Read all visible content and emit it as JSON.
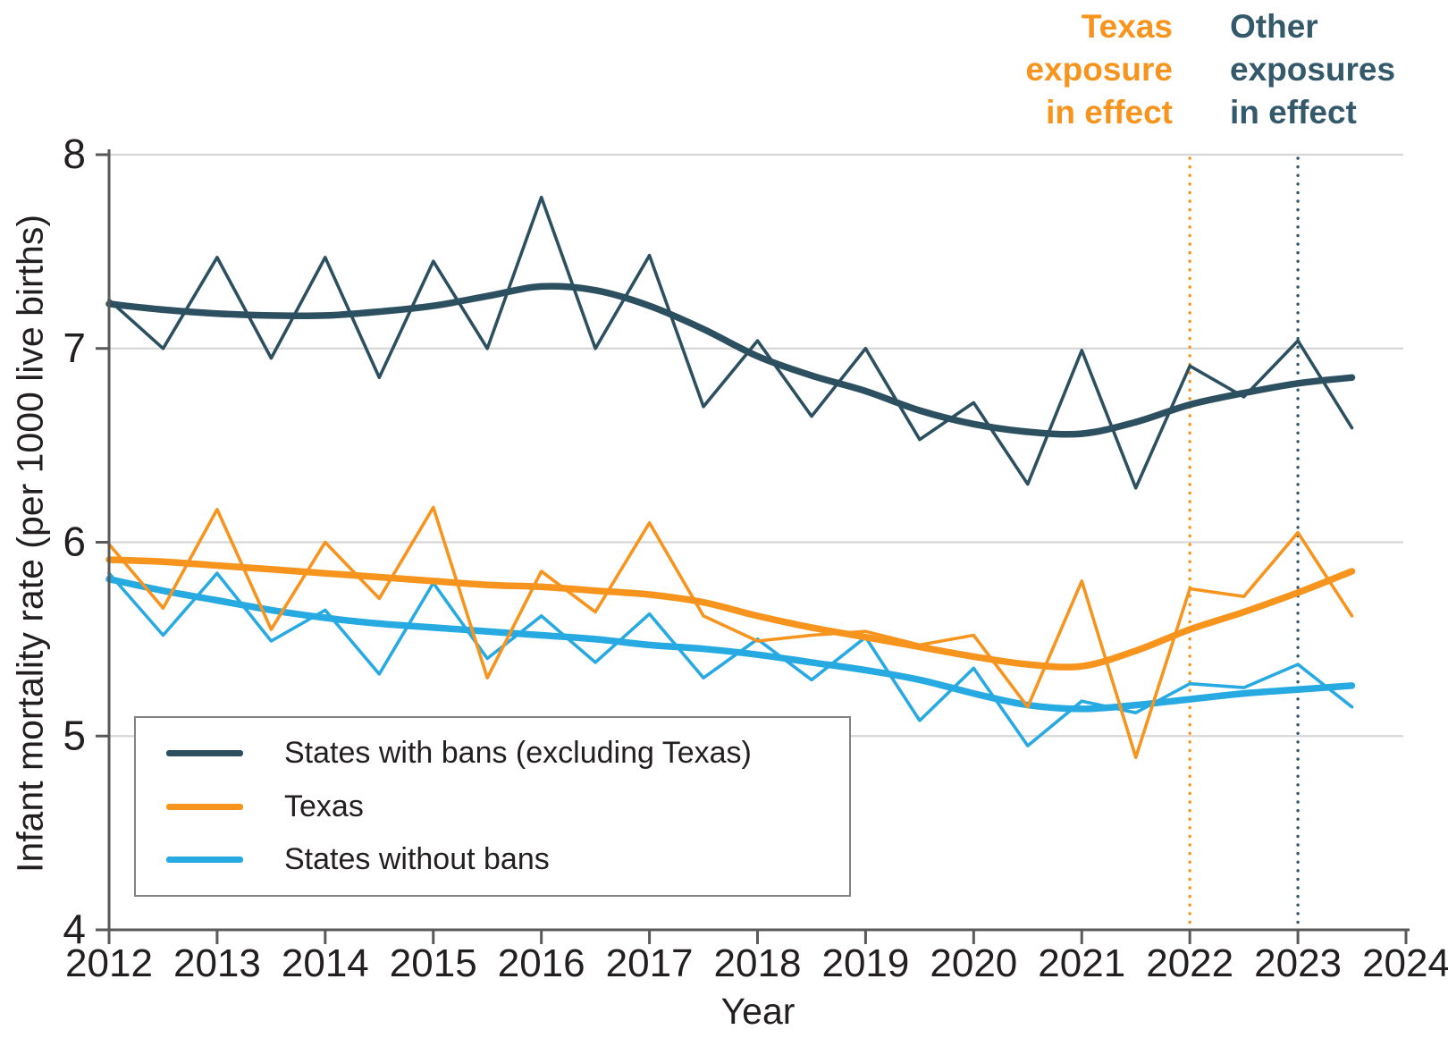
{
  "figure_title": "",
  "annotations": {
    "texas": {
      "text": "Texas\nexposure\nin effect",
      "color": "#F7941E"
    },
    "other": {
      "text": "Other\nexposures\nin effect",
      "color": "#33596B"
    }
  },
  "legend": {
    "items": [
      {
        "label": "States with bans (excluding Texas)",
        "color": "#2C5060"
      },
      {
        "label": "Texas",
        "color": "#F7941E"
      },
      {
        "label": "States without bans",
        "color": "#27AAE1"
      }
    ]
  },
  "chart_data": {
    "type": "line",
    "title": "",
    "xlabel": "Year",
    "ylabel": "Infant mortality rate (per 1000 live births)",
    "xlim": [
      2012,
      2024
    ],
    "ylim": [
      4,
      8
    ],
    "x_ticks": [
      2012,
      2013,
      2014,
      2015,
      2016,
      2017,
      2018,
      2019,
      2020,
      2021,
      2022,
      2023,
      2024
    ],
    "y_ticks": [
      4,
      5,
      6,
      7,
      8
    ],
    "grid": "horizontal gridlines at 5,6,7,8",
    "legend_position": "lower left box",
    "colors": {
      "grid": "#D7D7D7",
      "axis": "#58595B",
      "text": "#231F20"
    },
    "x": [
      2012,
      2012.5,
      2013,
      2013.5,
      2014,
      2014.5,
      2015,
      2015.5,
      2016,
      2016.5,
      2017,
      2017.5,
      2018,
      2018.5,
      2019,
      2019.5,
      2020,
      2020.5,
      2021,
      2021.5,
      2022,
      2022.5,
      2023,
      2023.5
    ],
    "series": [
      {
        "id": "bans-raw",
        "name": "States with bans (excluding Texas)",
        "role": "semiannual observed",
        "color": "#2C5060",
        "width": 3.6,
        "smooth": false,
        "values": [
          7.25,
          7.0,
          7.47,
          6.95,
          7.47,
          6.85,
          7.45,
          7.0,
          7.78,
          7.0,
          7.48,
          6.7,
          7.04,
          6.65,
          7.0,
          6.53,
          6.72,
          6.3,
          6.99,
          6.28,
          6.91,
          6.75,
          7.04,
          6.59
        ]
      },
      {
        "id": "bans-trend",
        "name": "States with bans (excluding Texas)",
        "role": "smoothed trend",
        "color": "#2C5060",
        "width": 7.5,
        "smooth": true,
        "values": [
          7.23,
          7.2,
          7.18,
          7.17,
          7.17,
          7.19,
          7.22,
          7.27,
          7.32,
          7.3,
          7.22,
          7.1,
          6.96,
          6.86,
          6.78,
          6.68,
          6.61,
          6.57,
          6.56,
          6.62,
          6.71,
          6.77,
          6.82,
          6.85
        ]
      },
      {
        "id": "nobans-raw",
        "name": "States without bans",
        "role": "semiannual observed",
        "color": "#27AAE1",
        "width": 3.6,
        "smooth": false,
        "values": [
          5.84,
          5.52,
          5.84,
          5.49,
          5.65,
          5.32,
          5.79,
          5.4,
          5.62,
          5.38,
          5.63,
          5.3,
          5.5,
          5.29,
          5.51,
          5.08,
          5.35,
          4.95,
          5.18,
          5.12,
          5.27,
          5.25,
          5.37,
          5.15
        ]
      },
      {
        "id": "nobans-trend",
        "name": "States without bans",
        "role": "smoothed trend",
        "color": "#27AAE1",
        "width": 7.5,
        "smooth": true,
        "values": [
          5.81,
          5.75,
          5.7,
          5.65,
          5.61,
          5.58,
          5.56,
          5.54,
          5.52,
          5.5,
          5.47,
          5.45,
          5.42,
          5.38,
          5.34,
          5.29,
          5.22,
          5.16,
          5.14,
          5.16,
          5.19,
          5.22,
          5.24,
          5.26
        ]
      },
      {
        "id": "texas-raw",
        "name": "Texas",
        "role": "semiannual observed",
        "color": "#F7941E",
        "width": 3.6,
        "smooth": false,
        "values": [
          5.99,
          5.66,
          6.17,
          5.55,
          6.0,
          5.71,
          6.18,
          5.3,
          5.85,
          5.64,
          6.1,
          5.62,
          5.49,
          5.52,
          5.54,
          5.47,
          5.52,
          5.15,
          5.8,
          4.89,
          5.76,
          5.72,
          6.05,
          5.62
        ]
      },
      {
        "id": "texas-trend",
        "name": "Texas",
        "role": "smoothed trend",
        "color": "#F7941E",
        "width": 7.5,
        "smooth": true,
        "values": [
          5.91,
          5.9,
          5.88,
          5.86,
          5.84,
          5.82,
          5.8,
          5.78,
          5.77,
          5.75,
          5.73,
          5.69,
          5.62,
          5.56,
          5.51,
          5.46,
          5.41,
          5.37,
          5.36,
          5.44,
          5.55,
          5.64,
          5.74,
          5.85
        ]
      }
    ],
    "vlines": [
      {
        "x": 2022,
        "label": "Texas exposure in effect",
        "color": "#F7941E"
      },
      {
        "x": 2023,
        "label": "Other exposures in effect",
        "color": "#33596B"
      }
    ]
  }
}
